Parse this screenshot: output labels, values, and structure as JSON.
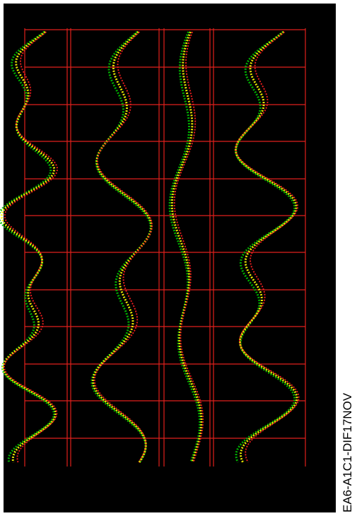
{
  "caption": "EA6-A1C1-DIF17NOV"
}
